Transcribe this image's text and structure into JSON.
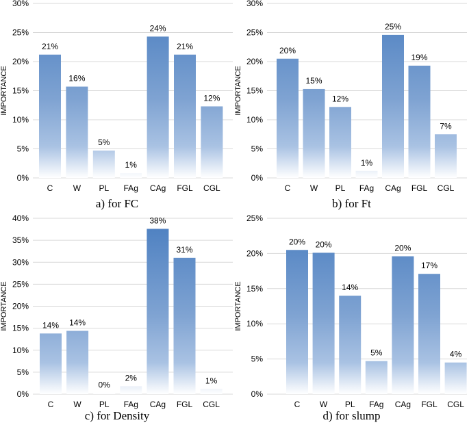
{
  "chart_data": [
    {
      "type": "bar",
      "caption": "a) for FC",
      "ylabel": "IMPORTANCE",
      "categories": [
        "C",
        "W",
        "PL",
        "FAg",
        "CAg",
        "FGL",
        "CGL"
      ],
      "values": [
        21.2,
        15.7,
        4.7,
        0.8,
        24.3,
        21.2,
        12.3
      ],
      "data_labels": [
        "21%",
        "16%",
        "5%",
        "1%",
        "24%",
        "21%",
        "12%"
      ],
      "ylim": [
        0,
        30
      ],
      "yticks": [
        0,
        5,
        10,
        15,
        20,
        25,
        30
      ],
      "ytick_labels": [
        "0%",
        "5%",
        "10%",
        "15%",
        "20%",
        "25%",
        "30%"
      ],
      "grid": true
    },
    {
      "type": "bar",
      "caption": "b) for Ft",
      "ylabel": "IMPORTANCE",
      "categories": [
        "C",
        "W",
        "PL",
        "FAg",
        "CAg",
        "FGL",
        "CGL"
      ],
      "values": [
        20.5,
        15.3,
        12.2,
        1.2,
        24.6,
        19.3,
        7.5
      ],
      "data_labels": [
        "20%",
        "15%",
        "12%",
        "1%",
        "25%",
        "19%",
        "7%"
      ],
      "ylim": [
        0,
        30
      ],
      "yticks": [
        0,
        5,
        10,
        15,
        20,
        25,
        30
      ],
      "ytick_labels": [
        "0%",
        "5%",
        "10%",
        "15%",
        "20%",
        "25%",
        "30%"
      ],
      "grid": true
    },
    {
      "type": "bar",
      "caption": "c) for Density",
      "ylabel": "IMPORTANCE",
      "categories": [
        "C",
        "W",
        "PL",
        "FAg",
        "CAg",
        "FGL",
        "CGL"
      ],
      "values": [
        13.8,
        14.4,
        0.2,
        1.8,
        37.6,
        31.0,
        1.2
      ],
      "data_labels": [
        "14%",
        "14%",
        "0%",
        "2%",
        "38%",
        "31%",
        "1%"
      ],
      "ylim": [
        0,
        40
      ],
      "yticks": [
        0,
        5,
        10,
        15,
        20,
        25,
        30,
        35,
        40
      ],
      "ytick_labels": [
        "0%",
        "5%",
        "10%",
        "15%",
        "20%",
        "25%",
        "30%",
        "35%",
        "40%"
      ],
      "grid": true
    },
    {
      "type": "bar",
      "caption": "d) for slump",
      "ylabel": "IMPORTANCE",
      "categories": [
        "C",
        "W",
        "PL",
        "FAg",
        "CAg",
        "FGL",
        "CGL"
      ],
      "values": [
        20.5,
        20.1,
        14.0,
        4.7,
        19.6,
        17.1,
        4.5
      ],
      "data_labels": [
        "20%",
        "20%",
        "14%",
        "5%",
        "20%",
        "17%",
        "4%"
      ],
      "ylim": [
        0,
        25
      ],
      "yticks": [
        0,
        5,
        10,
        15,
        20,
        25
      ],
      "ytick_labels": [
        "0%",
        "5%",
        "10%",
        "15%",
        "20%",
        "25%"
      ],
      "grid": true
    }
  ],
  "colors": {
    "bar_top": "#4a7ec0",
    "bar_bottom": "#ffffff",
    "grid": "#d9d9d9"
  }
}
